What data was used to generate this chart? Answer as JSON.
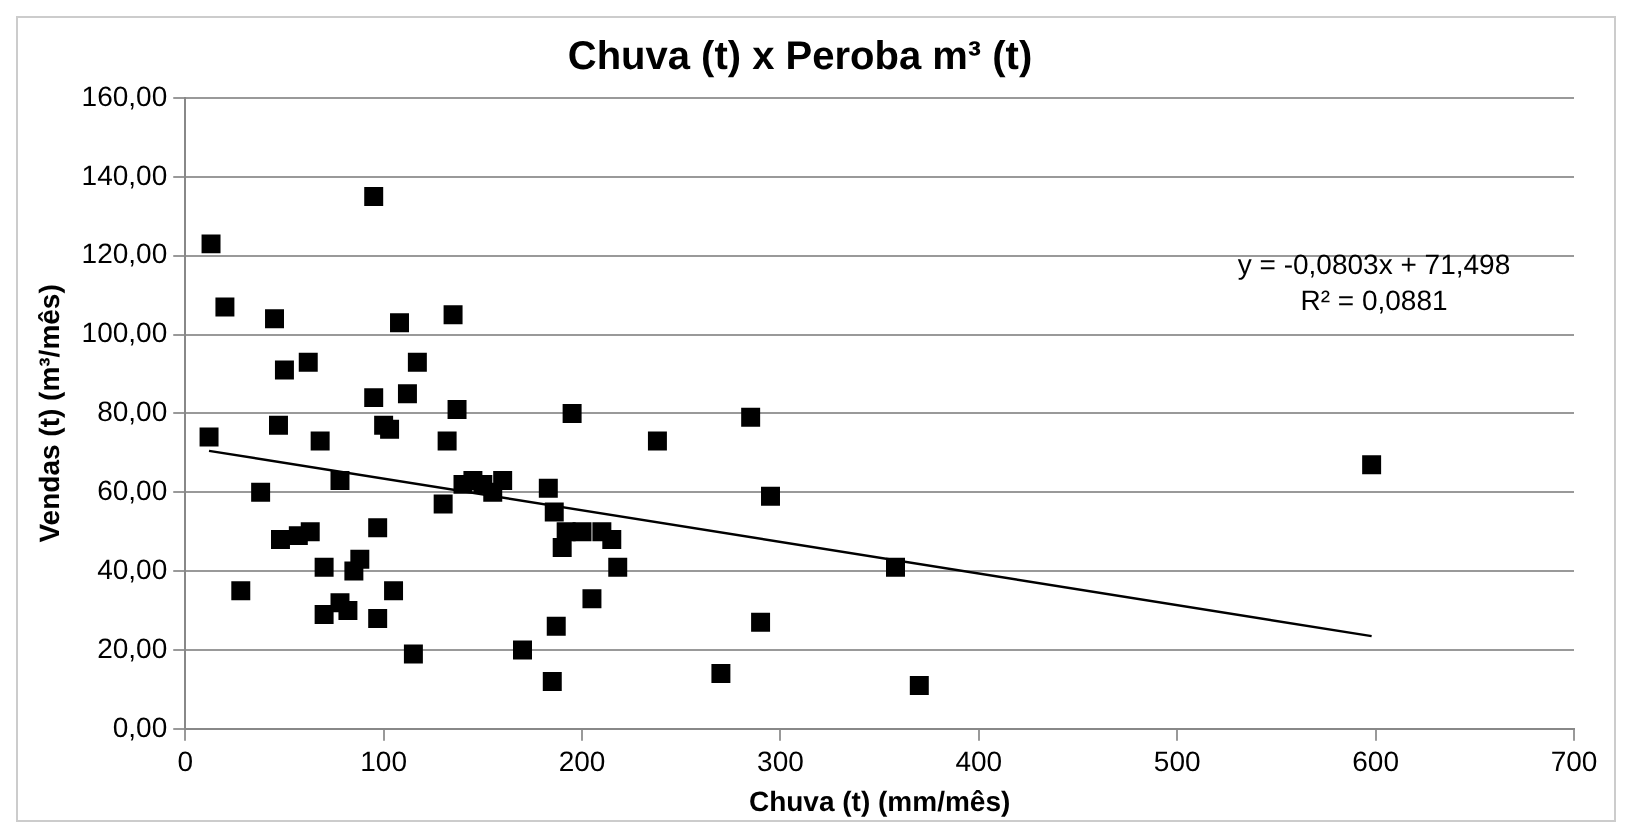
{
  "chart_data": {
    "type": "scatter",
    "title": "Chuva (t) x Peroba m³ (t)",
    "xlabel": "Chuva (t) (mm/mês)",
    "ylabel": "Vendas (t) (m³/mês)",
    "xlim": [
      0,
      700
    ],
    "xticks": [
      0,
      100,
      200,
      300,
      400,
      500,
      600,
      700
    ],
    "ylim": [
      0,
      160
    ],
    "yticks": [
      {
        "value": 0,
        "label": "0,00"
      },
      {
        "value": 20,
        "label": "20,00"
      },
      {
        "value": 40,
        "label": "40,00"
      },
      {
        "value": 60,
        "label": "60,00"
      },
      {
        "value": 80,
        "label": "80,00"
      },
      {
        "value": 100,
        "label": "100,00"
      },
      {
        "value": 120,
        "label": "120,00"
      },
      {
        "value": 140,
        "label": "140,00"
      },
      {
        "value": 160,
        "label": "160,00"
      }
    ],
    "grid": "y",
    "legend": false,
    "marker": "square",
    "annotations": [
      "y = -0,0803x + 71,498",
      "R² = 0,0881"
    ],
    "series": [
      {
        "color": "#000000",
        "x": [
          13,
          20,
          12,
          28,
          38,
          45,
          47,
          48,
          50,
          57,
          62,
          63,
          68,
          70,
          70,
          78,
          78,
          82,
          85,
          88,
          95,
          95,
          97,
          97,
          100,
          103,
          105,
          108,
          112,
          115,
          117,
          130,
          132,
          135,
          137,
          140,
          145,
          150,
          155,
          160,
          170,
          185,
          183,
          186,
          187,
          190,
          192,
          195,
          200,
          205,
          210,
          215,
          218,
          238,
          270,
          285,
          290,
          295,
          358,
          370,
          598
        ],
        "values": [
          123,
          107,
          74,
          35,
          60,
          104,
          77,
          48,
          91,
          49,
          93,
          50,
          73,
          29,
          41,
          63,
          32,
          30,
          40,
          43,
          84,
          135,
          51,
          28,
          77,
          76,
          35,
          103,
          85,
          19,
          93,
          57,
          73,
          105,
          81,
          62,
          63,
          62,
          60,
          63,
          20,
          12,
          61,
          55,
          26,
          46,
          50,
          80,
          50,
          33,
          50,
          48,
          41,
          73,
          14,
          79,
          27,
          59,
          41,
          11,
          67
        ]
      },
      {
        "type": "line",
        "color": "#000000",
        "marker": "none",
        "x": [
          12,
          598
        ],
        "values": [
          70.5,
          23.5
        ]
      }
    ]
  }
}
